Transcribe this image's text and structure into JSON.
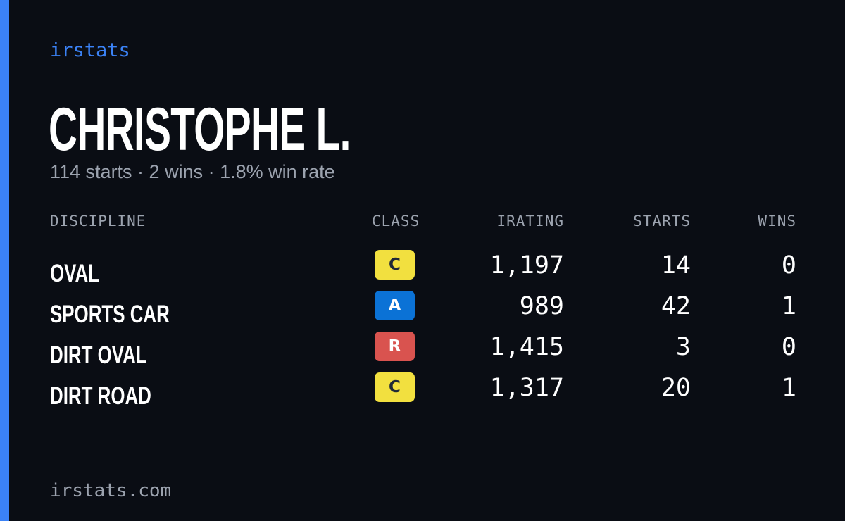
{
  "brand": "irstats",
  "driver": {
    "name": "CHRISTOPHE L.",
    "summary": "114 starts · 2 wins · 1.8% win rate"
  },
  "table": {
    "headers": {
      "discipline": "DISCIPLINE",
      "class": "CLASS",
      "irating": "IRATING",
      "starts": "STARTS",
      "wins": "WINS"
    },
    "rows": [
      {
        "discipline": "OVAL",
        "class": "C",
        "class_bg": "#f2e03f",
        "class_fg": "#1f2937",
        "irating": "1,197",
        "starts": "14",
        "wins": "0"
      },
      {
        "discipline": "SPORTS CAR",
        "class": "A",
        "class_bg": "#0b72d6",
        "class_fg": "#ffffff",
        "irating": "989",
        "starts": "42",
        "wins": "1"
      },
      {
        "discipline": "DIRT OVAL",
        "class": "R",
        "class_bg": "#d9534f",
        "class_fg": "#ffffff",
        "irating": "1,415",
        "starts": "3",
        "wins": "0"
      },
      {
        "discipline": "DIRT ROAD",
        "class": "C",
        "class_bg": "#f2e03f",
        "class_fg": "#1f2937",
        "irating": "1,317",
        "starts": "20",
        "wins": "1"
      }
    ]
  },
  "footer": "irstats.com",
  "colors": {
    "background": "#0a0d14",
    "accent": "#3b82f6",
    "muted": "#9ca3af"
  }
}
